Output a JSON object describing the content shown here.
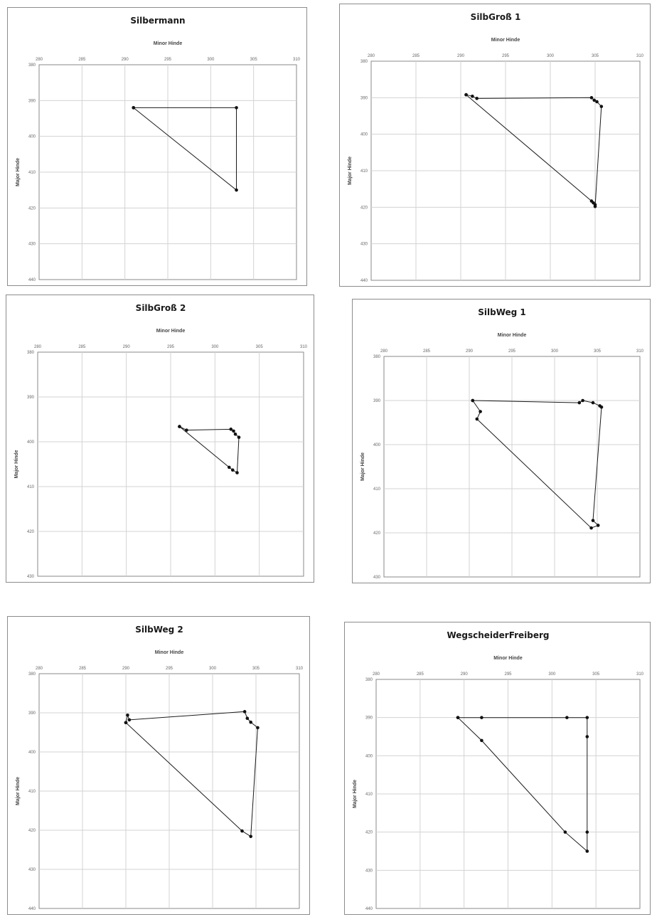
{
  "colors": {
    "line": "#1a1a1a",
    "marker": "#111111",
    "grid": "#d3d3d3",
    "frame": "#8a8a8a"
  },
  "chart_data": [
    {
      "type": "line",
      "title": "Silbermann",
      "xlabel": "Minor Hinde",
      "ylabel": "Major Hinde",
      "xlim": [
        280,
        310
      ],
      "ylim": [
        380,
        440
      ],
      "xticks": [
        "280",
        "285",
        "290",
        "295",
        "300",
        "305",
        "310"
      ],
      "yticks": [
        "380",
        "390",
        "400",
        "410",
        "420",
        "430",
        "440"
      ],
      "x_axis_position": "top",
      "y_reversed": true,
      "grid": true,
      "x": [
        291,
        303,
        303,
        291
      ],
      "y": [
        392,
        392,
        415,
        392
      ]
    },
    {
      "type": "line",
      "title": "SilbGroß 1",
      "xlabel": "Minor Hinde",
      "ylabel": "Major Hinde",
      "xlim": [
        280,
        310
      ],
      "ylim": [
        380,
        440
      ],
      "xticks": [
        "280",
        "285",
        "290",
        "295",
        "300",
        "305",
        "310"
      ],
      "yticks": [
        "380",
        "390",
        "400",
        "410",
        "420",
        "430",
        "440"
      ],
      "x_axis_position": "top",
      "y_reversed": true,
      "grid": true,
      "x": [
        290.6,
        291.3,
        291.8,
        304.6,
        304.9,
        305.2,
        305.7,
        305.0,
        304.8,
        305.0,
        304.6,
        290.6
      ],
      "y": [
        389.2,
        389.6,
        390.2,
        390.0,
        390.7,
        391.1,
        392.4,
        419.8,
        418.8,
        419.3,
        418.3,
        389.2
      ]
    },
    {
      "type": "line",
      "title": "SilbGroß 2",
      "xlabel": "Minor Hinde",
      "ylabel": "Major Hinde",
      "xlim": [
        280,
        310
      ],
      "ylim": [
        380,
        430
      ],
      "xticks": [
        "280",
        "285",
        "290",
        "295",
        "300",
        "305",
        "310"
      ],
      "yticks": [
        "380",
        "390",
        "400",
        "410",
        "420",
        "430"
      ],
      "x_axis_position": "top",
      "y_reversed": true,
      "grid": true,
      "x": [
        296.0,
        296.8,
        301.8,
        302.1,
        302.3,
        302.7,
        302.5,
        302.0,
        301.6,
        296.0
      ],
      "y": [
        396.6,
        397.4,
        397.2,
        397.6,
        398.3,
        399.0,
        406.9,
        406.3,
        405.7,
        396.6
      ]
    },
    {
      "type": "line",
      "title": "SilbWeg 1",
      "xlabel": "Minor Hinde",
      "ylabel": "Major Hinde",
      "xlim": [
        280,
        310
      ],
      "ylim": [
        380,
        430
      ],
      "xticks": [
        "280",
        "285",
        "290",
        "295",
        "300",
        "305",
        "310"
      ],
      "yticks": [
        "380",
        "390",
        "400",
        "410",
        "420",
        "430"
      ],
      "x_axis_position": "top",
      "y_reversed": true,
      "grid": true,
      "x": [
        290.4,
        302.9,
        303.3,
        304.5,
        305.3,
        305.5,
        304.5,
        305.1,
        304.3,
        290.9,
        291.3,
        290.4
      ],
      "y": [
        390.0,
        390.5,
        390.0,
        390.5,
        391.2,
        391.5,
        417.2,
        418.3,
        418.9,
        394.2,
        392.5,
        390.0
      ]
    },
    {
      "type": "line",
      "title": "SilbWeg 2",
      "xlabel": "Minor Hinde",
      "ylabel": "Major Hinde",
      "xlim": [
        280,
        310
      ],
      "ylim": [
        380,
        440
      ],
      "xticks": [
        "280",
        "285",
        "290",
        "295",
        "300",
        "305",
        "310"
      ],
      "yticks": [
        "380",
        "390",
        "400",
        "410",
        "420",
        "430",
        "440"
      ],
      "x_axis_position": "top",
      "y_reversed": true,
      "grid": true,
      "x": [
        290.0,
        290.2,
        290.4,
        303.7,
        304.0,
        304.4,
        305.2,
        304.4,
        303.4,
        290.0
      ],
      "y": [
        392.5,
        390.6,
        391.8,
        389.7,
        391.4,
        392.4,
        393.8,
        421.6,
        420.2,
        392.5
      ]
    },
    {
      "type": "line",
      "title": "WegscheiderFreiberg",
      "xlabel": "Minor Hinde",
      "ylabel": "Major Hinde",
      "xlim": [
        280,
        310
      ],
      "ylim": [
        380,
        440
      ],
      "xticks": [
        "280",
        "285",
        "290",
        "295",
        "300",
        "305",
        "310"
      ],
      "yticks": [
        "380",
        "390",
        "400",
        "410",
        "420",
        "430",
        "440"
      ],
      "x_axis_position": "top",
      "y_reversed": true,
      "grid": true,
      "x": [
        289.3,
        292.0,
        301.7,
        304.0,
        304.0,
        304.0,
        304.0,
        301.5,
        292.0,
        289.3
      ],
      "y": [
        390.0,
        390.0,
        390.0,
        390.0,
        395.0,
        420.0,
        425.0,
        420.0,
        396.0,
        390.0
      ]
    }
  ]
}
